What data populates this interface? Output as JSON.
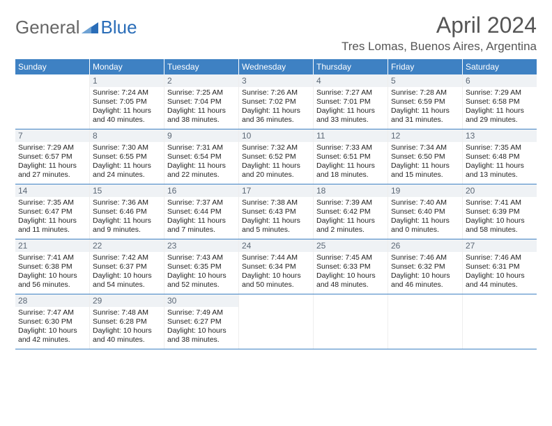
{
  "logo": {
    "text1": "General",
    "text2": "Blue",
    "text1_color": "#777777",
    "text2_color": "#2a6db8",
    "tri_color": "#2a6db8"
  },
  "title": "April 2024",
  "location": "Tres Lomas, Buenos Aires, Argentina",
  "header_bg": "#3e81c3",
  "day_headers": [
    "Sunday",
    "Monday",
    "Tuesday",
    "Wednesday",
    "Thursday",
    "Friday",
    "Saturday"
  ],
  "weeks": [
    [
      null,
      {
        "n": "1",
        "sr": "7:24 AM",
        "ss": "7:05 PM",
        "dh": "11",
        "dm": "40"
      },
      {
        "n": "2",
        "sr": "7:25 AM",
        "ss": "7:04 PM",
        "dh": "11",
        "dm": "38"
      },
      {
        "n": "3",
        "sr": "7:26 AM",
        "ss": "7:02 PM",
        "dh": "11",
        "dm": "36"
      },
      {
        "n": "4",
        "sr": "7:27 AM",
        "ss": "7:01 PM",
        "dh": "11",
        "dm": "33"
      },
      {
        "n": "5",
        "sr": "7:28 AM",
        "ss": "6:59 PM",
        "dh": "11",
        "dm": "31"
      },
      {
        "n": "6",
        "sr": "7:29 AM",
        "ss": "6:58 PM",
        "dh": "11",
        "dm": "29"
      }
    ],
    [
      {
        "n": "7",
        "sr": "7:29 AM",
        "ss": "6:57 PM",
        "dh": "11",
        "dm": "27"
      },
      {
        "n": "8",
        "sr": "7:30 AM",
        "ss": "6:55 PM",
        "dh": "11",
        "dm": "24"
      },
      {
        "n": "9",
        "sr": "7:31 AM",
        "ss": "6:54 PM",
        "dh": "11",
        "dm": "22"
      },
      {
        "n": "10",
        "sr": "7:32 AM",
        "ss": "6:52 PM",
        "dh": "11",
        "dm": "20"
      },
      {
        "n": "11",
        "sr": "7:33 AM",
        "ss": "6:51 PM",
        "dh": "11",
        "dm": "18"
      },
      {
        "n": "12",
        "sr": "7:34 AM",
        "ss": "6:50 PM",
        "dh": "11",
        "dm": "15"
      },
      {
        "n": "13",
        "sr": "7:35 AM",
        "ss": "6:48 PM",
        "dh": "11",
        "dm": "13"
      }
    ],
    [
      {
        "n": "14",
        "sr": "7:35 AM",
        "ss": "6:47 PM",
        "dh": "11",
        "dm": "11"
      },
      {
        "n": "15",
        "sr": "7:36 AM",
        "ss": "6:46 PM",
        "dh": "11",
        "dm": "9"
      },
      {
        "n": "16",
        "sr": "7:37 AM",
        "ss": "6:44 PM",
        "dh": "11",
        "dm": "7"
      },
      {
        "n": "17",
        "sr": "7:38 AM",
        "ss": "6:43 PM",
        "dh": "11",
        "dm": "5"
      },
      {
        "n": "18",
        "sr": "7:39 AM",
        "ss": "6:42 PM",
        "dh": "11",
        "dm": "2"
      },
      {
        "n": "19",
        "sr": "7:40 AM",
        "ss": "6:40 PM",
        "dh": "11",
        "dm": "0"
      },
      {
        "n": "20",
        "sr": "7:41 AM",
        "ss": "6:39 PM",
        "dh": "10",
        "dm": "58"
      }
    ],
    [
      {
        "n": "21",
        "sr": "7:41 AM",
        "ss": "6:38 PM",
        "dh": "10",
        "dm": "56"
      },
      {
        "n": "22",
        "sr": "7:42 AM",
        "ss": "6:37 PM",
        "dh": "10",
        "dm": "54"
      },
      {
        "n": "23",
        "sr": "7:43 AM",
        "ss": "6:35 PM",
        "dh": "10",
        "dm": "52"
      },
      {
        "n": "24",
        "sr": "7:44 AM",
        "ss": "6:34 PM",
        "dh": "10",
        "dm": "50"
      },
      {
        "n": "25",
        "sr": "7:45 AM",
        "ss": "6:33 PM",
        "dh": "10",
        "dm": "48"
      },
      {
        "n": "26",
        "sr": "7:46 AM",
        "ss": "6:32 PM",
        "dh": "10",
        "dm": "46"
      },
      {
        "n": "27",
        "sr": "7:46 AM",
        "ss": "6:31 PM",
        "dh": "10",
        "dm": "44"
      }
    ],
    [
      {
        "n": "28",
        "sr": "7:47 AM",
        "ss": "6:30 PM",
        "dh": "10",
        "dm": "42"
      },
      {
        "n": "29",
        "sr": "7:48 AM",
        "ss": "6:28 PM",
        "dh": "10",
        "dm": "40"
      },
      {
        "n": "30",
        "sr": "7:49 AM",
        "ss": "6:27 PM",
        "dh": "10",
        "dm": "38"
      },
      null,
      null,
      null,
      null
    ]
  ],
  "labels": {
    "sunrise": "Sunrise:",
    "sunset": "Sunset:",
    "daylight": "Daylight:",
    "hours": "hours",
    "and": "and",
    "minutes": "minutes."
  }
}
